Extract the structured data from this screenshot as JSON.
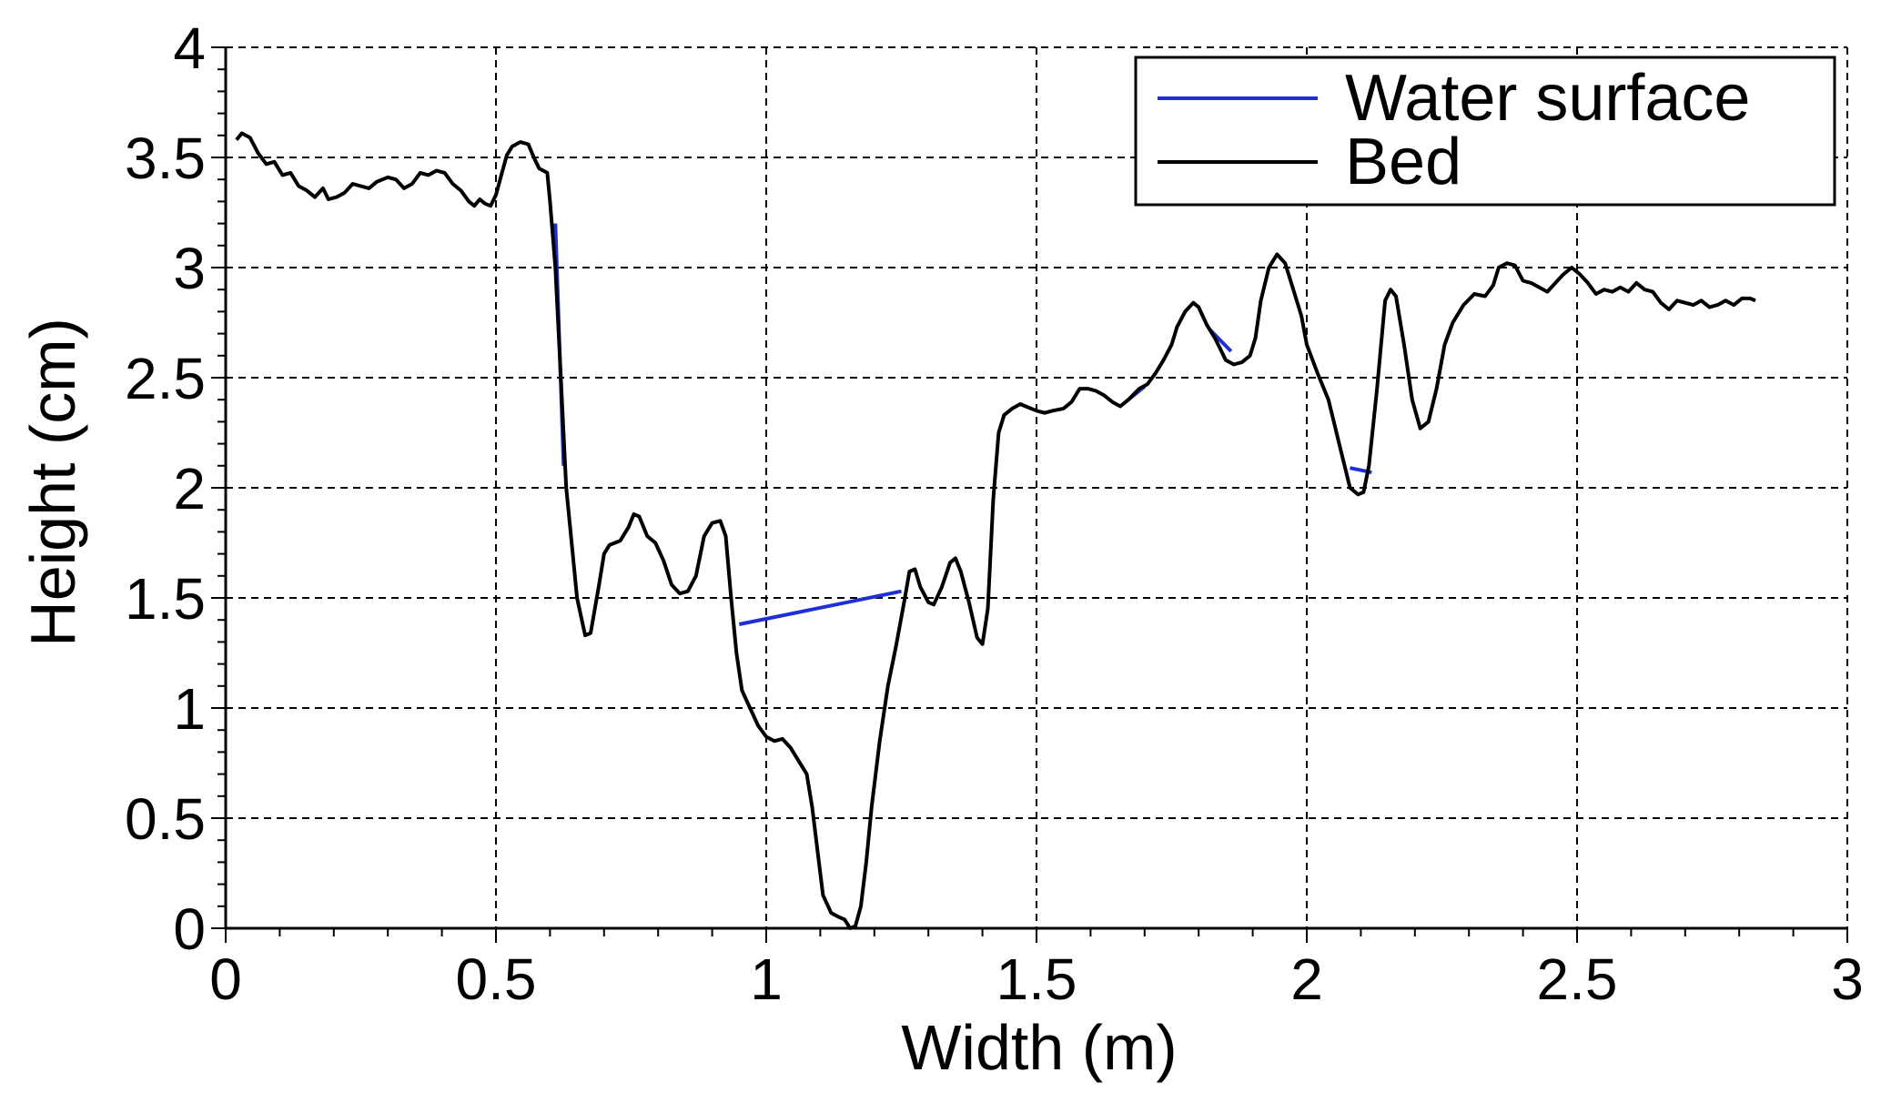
{
  "chart_data": {
    "type": "line",
    "xlabel": "Width (m)",
    "ylabel": "Height (cm)",
    "xlim": [
      0,
      3
    ],
    "ylim": [
      0,
      4
    ],
    "x_ticks": [
      "0",
      "0.5",
      "1",
      "1.5",
      "2",
      "2.5",
      "3"
    ],
    "y_ticks": [
      "0",
      "0.5",
      "1",
      "1.5",
      "2",
      "2.5",
      "3",
      "3.5",
      "4"
    ],
    "grid": true,
    "legend_position": "top-right",
    "colors": {
      "water": "#1f2fd6",
      "bed": "#000000"
    },
    "series": [
      {
        "name": "Water surface",
        "segments": [
          [
            [
              0.61,
              3.2
            ],
            [
              0.625,
              2.1
            ]
          ],
          [
            [
              0.95,
              1.38
            ],
            [
              1.25,
              1.53
            ]
          ],
          [
            [
              1.66,
              2.38
            ],
            [
              1.7,
              2.46
            ]
          ],
          [
            [
              1.82,
              2.72
            ],
            [
              1.86,
              2.62
            ]
          ],
          [
            [
              2.08,
              2.09
            ],
            [
              2.12,
              2.07
            ]
          ]
        ]
      },
      {
        "name": "Bed",
        "points": [
          [
            0.02,
            3.58
          ],
          [
            0.03,
            3.61
          ],
          [
            0.045,
            3.59
          ],
          [
            0.06,
            3.52
          ],
          [
            0.075,
            3.47
          ],
          [
            0.09,
            3.48
          ],
          [
            0.105,
            3.42
          ],
          [
            0.12,
            3.43
          ],
          [
            0.135,
            3.37
          ],
          [
            0.15,
            3.35
          ],
          [
            0.165,
            3.32
          ],
          [
            0.18,
            3.36
          ],
          [
            0.19,
            3.31
          ],
          [
            0.205,
            3.32
          ],
          [
            0.22,
            3.34
          ],
          [
            0.235,
            3.38
          ],
          [
            0.25,
            3.37
          ],
          [
            0.265,
            3.36
          ],
          [
            0.28,
            3.39
          ],
          [
            0.3,
            3.41
          ],
          [
            0.315,
            3.4
          ],
          [
            0.33,
            3.36
          ],
          [
            0.345,
            3.38
          ],
          [
            0.36,
            3.43
          ],
          [
            0.375,
            3.42
          ],
          [
            0.39,
            3.44
          ],
          [
            0.405,
            3.43
          ],
          [
            0.42,
            3.38
          ],
          [
            0.435,
            3.35
          ],
          [
            0.45,
            3.3
          ],
          [
            0.46,
            3.28
          ],
          [
            0.47,
            3.31
          ],
          [
            0.48,
            3.29
          ],
          [
            0.49,
            3.28
          ],
          [
            0.5,
            3.33
          ],
          [
            0.51,
            3.42
          ],
          [
            0.52,
            3.51
          ],
          [
            0.53,
            3.55
          ],
          [
            0.545,
            3.57
          ],
          [
            0.56,
            3.56
          ],
          [
            0.57,
            3.5
          ],
          [
            0.58,
            3.45
          ],
          [
            0.595,
            3.43
          ],
          [
            0.6,
            3.3
          ],
          [
            0.61,
            3.0
          ],
          [
            0.62,
            2.5
          ],
          [
            0.63,
            2.0
          ],
          [
            0.64,
            1.75
          ],
          [
            0.65,
            1.5
          ],
          [
            0.665,
            1.33
          ],
          [
            0.675,
            1.34
          ],
          [
            0.69,
            1.55
          ],
          [
            0.7,
            1.7
          ],
          [
            0.71,
            1.74
          ],
          [
            0.73,
            1.76
          ],
          [
            0.745,
            1.82
          ],
          [
            0.755,
            1.88
          ],
          [
            0.765,
            1.87
          ],
          [
            0.78,
            1.78
          ],
          [
            0.795,
            1.75
          ],
          [
            0.81,
            1.67
          ],
          [
            0.825,
            1.56
          ],
          [
            0.84,
            1.52
          ],
          [
            0.855,
            1.53
          ],
          [
            0.87,
            1.6
          ],
          [
            0.885,
            1.78
          ],
          [
            0.9,
            1.84
          ],
          [
            0.915,
            1.85
          ],
          [
            0.925,
            1.78
          ],
          [
            0.935,
            1.5
          ],
          [
            0.945,
            1.25
          ],
          [
            0.955,
            1.08
          ],
          [
            0.97,
            1.0
          ],
          [
            0.985,
            0.92
          ],
          [
            1.0,
            0.87
          ],
          [
            1.015,
            0.85
          ],
          [
            1.03,
            0.86
          ],
          [
            1.045,
            0.82
          ],
          [
            1.06,
            0.76
          ],
          [
            1.075,
            0.7
          ],
          [
            1.085,
            0.55
          ],
          [
            1.095,
            0.35
          ],
          [
            1.105,
            0.15
          ],
          [
            1.12,
            0.07
          ],
          [
            1.135,
            0.05
          ],
          [
            1.145,
            0.04
          ],
          [
            1.155,
            0.0
          ],
          [
            1.165,
            0.01
          ],
          [
            1.175,
            0.1
          ],
          [
            1.185,
            0.3
          ],
          [
            1.195,
            0.55
          ],
          [
            1.21,
            0.85
          ],
          [
            1.225,
            1.1
          ],
          [
            1.24,
            1.28
          ],
          [
            1.255,
            1.48
          ],
          [
            1.265,
            1.62
          ],
          [
            1.275,
            1.63
          ],
          [
            1.285,
            1.55
          ],
          [
            1.3,
            1.48
          ],
          [
            1.31,
            1.47
          ],
          [
            1.325,
            1.55
          ],
          [
            1.34,
            1.66
          ],
          [
            1.35,
            1.68
          ],
          [
            1.36,
            1.62
          ],
          [
            1.375,
            1.48
          ],
          [
            1.39,
            1.32
          ],
          [
            1.4,
            1.29
          ],
          [
            1.41,
            1.45
          ],
          [
            1.42,
            1.95
          ],
          [
            1.43,
            2.25
          ],
          [
            1.44,
            2.33
          ],
          [
            1.455,
            2.36
          ],
          [
            1.47,
            2.38
          ],
          [
            1.48,
            2.37
          ],
          [
            1.5,
            2.35
          ],
          [
            1.515,
            2.34
          ],
          [
            1.53,
            2.35
          ],
          [
            1.55,
            2.36
          ],
          [
            1.565,
            2.39
          ],
          [
            1.58,
            2.45
          ],
          [
            1.595,
            2.45
          ],
          [
            1.61,
            2.44
          ],
          [
            1.625,
            2.42
          ],
          [
            1.64,
            2.39
          ],
          [
            1.655,
            2.37
          ],
          [
            1.67,
            2.4
          ],
          [
            1.69,
            2.45
          ],
          [
            1.705,
            2.47
          ],
          [
            1.72,
            2.52
          ],
          [
            1.735,
            2.58
          ],
          [
            1.75,
            2.65
          ],
          [
            1.76,
            2.73
          ],
          [
            1.775,
            2.8
          ],
          [
            1.79,
            2.84
          ],
          [
            1.8,
            2.82
          ],
          [
            1.815,
            2.74
          ],
          [
            1.83,
            2.68
          ],
          [
            1.84,
            2.63
          ],
          [
            1.85,
            2.58
          ],
          [
            1.865,
            2.56
          ],
          [
            1.88,
            2.57
          ],
          [
            1.895,
            2.6
          ],
          [
            1.905,
            2.68
          ],
          [
            1.915,
            2.85
          ],
          [
            1.93,
            3.0
          ],
          [
            1.945,
            3.06
          ],
          [
            1.96,
            3.02
          ],
          [
            1.975,
            2.9
          ],
          [
            1.99,
            2.78
          ],
          [
            2.0,
            2.65
          ],
          [
            2.02,
            2.52
          ],
          [
            2.04,
            2.4
          ],
          [
            2.06,
            2.2
          ],
          [
            2.08,
            2.0
          ],
          [
            2.095,
            1.97
          ],
          [
            2.105,
            1.98
          ],
          [
            2.115,
            2.1
          ],
          [
            2.13,
            2.45
          ],
          [
            2.145,
            2.85
          ],
          [
            2.155,
            2.9
          ],
          [
            2.165,
            2.87
          ],
          [
            2.18,
            2.65
          ],
          [
            2.195,
            2.4
          ],
          [
            2.21,
            2.27
          ],
          [
            2.225,
            2.3
          ],
          [
            2.24,
            2.45
          ],
          [
            2.255,
            2.65
          ],
          [
            2.27,
            2.75
          ],
          [
            2.29,
            2.83
          ],
          [
            2.31,
            2.88
          ],
          [
            2.33,
            2.87
          ],
          [
            2.345,
            2.92
          ],
          [
            2.355,
            3.0
          ],
          [
            2.37,
            3.02
          ],
          [
            2.385,
            3.01
          ],
          [
            2.4,
            2.94
          ],
          [
            2.415,
            2.93
          ],
          [
            2.43,
            2.91
          ],
          [
            2.445,
            2.89
          ],
          [
            2.46,
            2.93
          ],
          [
            2.475,
            2.97
          ],
          [
            2.49,
            3.0
          ],
          [
            2.505,
            2.97
          ],
          [
            2.52,
            2.93
          ],
          [
            2.535,
            2.88
          ],
          [
            2.55,
            2.9
          ],
          [
            2.565,
            2.89
          ],
          [
            2.58,
            2.91
          ],
          [
            2.595,
            2.89
          ],
          [
            2.61,
            2.93
          ],
          [
            2.625,
            2.9
          ],
          [
            2.64,
            2.89
          ],
          [
            2.655,
            2.84
          ],
          [
            2.67,
            2.81
          ],
          [
            2.685,
            2.85
          ],
          [
            2.7,
            2.84
          ],
          [
            2.715,
            2.83
          ],
          [
            2.73,
            2.85
          ],
          [
            2.745,
            2.82
          ],
          [
            2.76,
            2.83
          ],
          [
            2.775,
            2.85
          ],
          [
            2.79,
            2.83
          ],
          [
            2.805,
            2.86
          ],
          [
            2.82,
            2.86
          ],
          [
            2.83,
            2.85
          ]
        ]
      }
    ]
  }
}
